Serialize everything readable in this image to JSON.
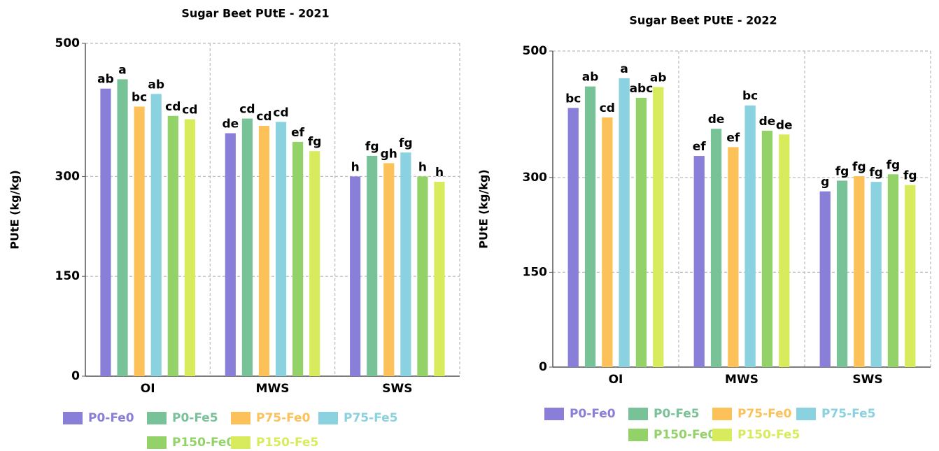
{
  "chart_data": [
    {
      "type": "bar",
      "title": "Sugar Beet PUtE - 2021",
      "y_label": "PUtE (kg/kg)",
      "categories": [
        "OI",
        "MWS",
        "SWS"
      ],
      "ylim": [
        0,
        500
      ],
      "yticks": [
        0,
        150,
        300,
        500
      ],
      "grid": true,
      "series": [
        {
          "name": "P0-Fe0",
          "color": "#8a7fd8",
          "values": [
            432,
            365,
            300
          ],
          "letters": [
            "ab",
            "de",
            "h"
          ]
        },
        {
          "name": "P0-Fe5",
          "color": "#78c297",
          "values": [
            446,
            387,
            331
          ],
          "letters": [
            "a",
            "cd",
            "fg"
          ]
        },
        {
          "name": "P75-Fe0",
          "color": "#fcc259",
          "values": [
            405,
            376,
            320
          ],
          "letters": [
            "bc",
            "cd",
            "gh"
          ]
        },
        {
          "name": "P75-Fe5",
          "color": "#8ad2df",
          "values": [
            424,
            382,
            336
          ],
          "letters": [
            "ab",
            "cd",
            "fg"
          ]
        },
        {
          "name": "P150-Fe0",
          "color": "#93d268",
          "values": [
            391,
            352,
            300
          ],
          "letters": [
            "cd",
            "ef",
            "h"
          ]
        },
        {
          "name": "P150-Fe5",
          "color": "#d7eb5c",
          "values": [
            386,
            338,
            292
          ],
          "letters": [
            "cd",
            "fg",
            "h"
          ]
        }
      ]
    },
    {
      "type": "bar",
      "title": "Sugar Beet PUtE - 2022",
      "y_label": "PUtE (kg/kg)",
      "categories": [
        "OI",
        "MWS",
        "SWS"
      ],
      "ylim": [
        0,
        500
      ],
      "yticks": [
        0,
        150,
        300,
        500
      ],
      "grid": true,
      "series": [
        {
          "name": "P0-Fe0",
          "color": "#8a7fd8",
          "values": [
            410,
            334,
            278
          ],
          "letters": [
            "bc",
            "ef",
            "g"
          ]
        },
        {
          "name": "P0-Fe5",
          "color": "#78c297",
          "values": [
            444,
            377,
            295
          ],
          "letters": [
            "ab",
            "de",
            "fg"
          ]
        },
        {
          "name": "P75-Fe0",
          "color": "#fcc259",
          "values": [
            395,
            348,
            302
          ],
          "letters": [
            "cd",
            "ef",
            "fg"
          ]
        },
        {
          "name": "P75-Fe5",
          "color": "#8ad2df",
          "values": [
            457,
            414,
            293
          ],
          "letters": [
            "a",
            "bc",
            "fg"
          ]
        },
        {
          "name": "P150-Fe0",
          "color": "#93d268",
          "values": [
            426,
            374,
            305
          ],
          "letters": [
            "abc",
            "de",
            "fg"
          ]
        },
        {
          "name": "P150-Fe5",
          "color": "#d7eb5c",
          "values": [
            443,
            368,
            288
          ],
          "letters": [
            "ab",
            "de",
            "fg"
          ]
        }
      ]
    }
  ]
}
